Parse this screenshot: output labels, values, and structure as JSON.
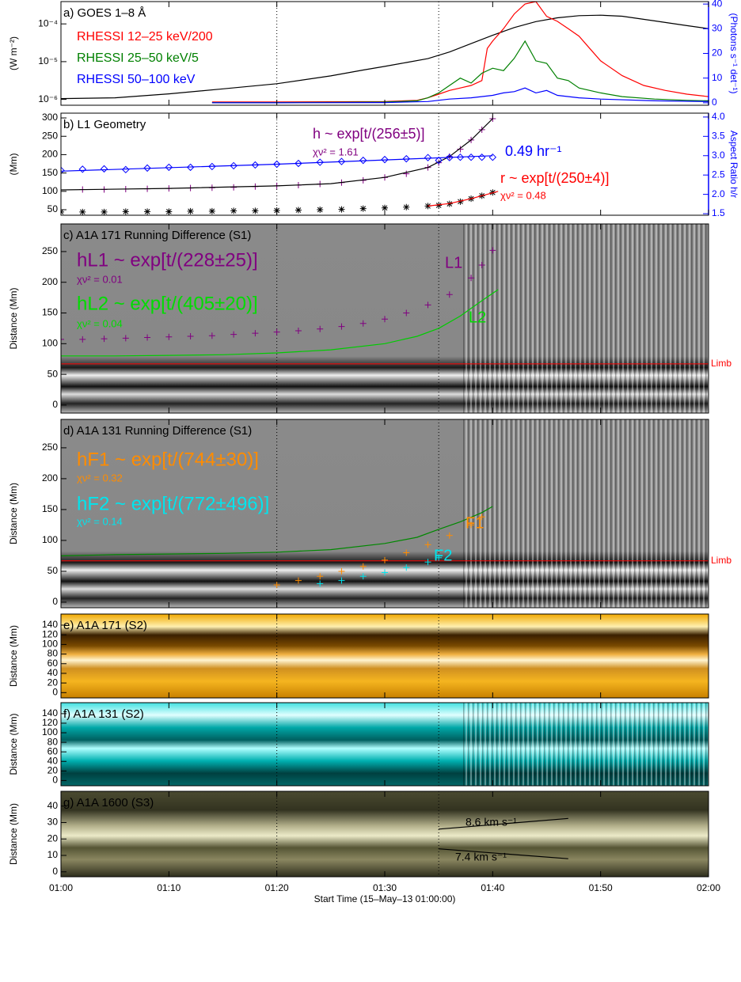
{
  "chart_data": [
    {
      "type": "line",
      "title": "a) GOES 1–8 Å",
      "ylabel": "(W m⁻²)",
      "y2label": "(Photons s⁻¹ det⁻¹)",
      "y2color": "#0000ff",
      "xlim": [
        0,
        60
      ],
      "ylog": true,
      "ylim": [
        7e-07,
        0.00039
      ],
      "yticks": [
        {
          "value": 1e-06,
          "label": "10⁻⁶"
        },
        {
          "value": 1e-05,
          "label": "10⁻⁵"
        },
        {
          "value": 0.0001,
          "label": "10⁻⁴"
        }
      ],
      "y2lim": [
        -1,
        41
      ],
      "y2ticks": [
        0,
        10,
        20,
        30,
        40
      ],
      "vlines": [
        20,
        35
      ],
      "series": [
        {
          "color": "#000000",
          "marker": "line",
          "x": [
            0,
            5,
            10,
            15,
            20,
            25,
            28,
            30,
            32,
            34,
            36,
            38,
            40,
            42,
            44,
            46,
            48,
            50,
            52,
            55,
            58,
            60
          ],
          "values": [
            1.05e-06,
            1.1e-06,
            1.4e-06,
            1.9e-06,
            2.6e-06,
            4.2e-06,
            6e-06,
            7.5e-06,
            9.5e-06,
            1.2e-05,
            1.8e-05,
            3e-05,
            5e-05,
            8e-05,
            0.000115,
            0.000145,
            0.000165,
            0.00017,
            0.00016,
            0.00012,
            9e-05,
            7.5e-05
          ]
        },
        {
          "name": "RHESSI 12–25 keV/200",
          "color": "#ff0000",
          "marker": "line",
          "axis": "y2",
          "x": [
            14,
            20,
            25,
            30,
            33,
            34,
            35,
            36,
            37,
            38,
            39,
            39.5,
            40,
            41,
            42,
            43,
            44,
            45,
            46,
            47,
            48,
            49,
            50,
            52,
            54,
            56,
            58,
            60
          ],
          "values": [
            0.3,
            0.3,
            0.4,
            0.5,
            1,
            2,
            3.5,
            5,
            6,
            7,
            9,
            22,
            25,
            30,
            36,
            40,
            41,
            35,
            33,
            30,
            27,
            22,
            17,
            11,
            7,
            5,
            3.5,
            2.5
          ]
        },
        {
          "name": "RHESSI 25–50 keV/5",
          "color": "#008000",
          "marker": "line",
          "axis": "y2",
          "x": [
            14,
            20,
            25,
            30,
            33,
            34,
            35,
            36,
            37,
            38,
            39,
            40,
            41,
            42,
            43,
            44,
            45,
            46,
            47,
            48,
            50,
            52,
            55,
            58,
            60
          ],
          "values": [
            0.1,
            0.1,
            0.2,
            0.3,
            0.8,
            2,
            4,
            7,
            10,
            8,
            12,
            14,
            13,
            18,
            25,
            17,
            16,
            10,
            9,
            6,
            4,
            2.5,
            1.5,
            1,
            0.8
          ]
        },
        {
          "name": "RHESSI 50–100 keV",
          "color": "#0000ff",
          "marker": "line",
          "axis": "y2",
          "x": [
            14,
            20,
            30,
            34,
            36,
            38,
            40,
            41,
            42,
            43,
            44,
            45,
            46,
            48,
            50,
            55,
            60
          ],
          "values": [
            0,
            0,
            0.1,
            0.5,
            1.5,
            2,
            3,
            4,
            4.5,
            6,
            4,
            5,
            3,
            2,
            1.5,
            0.8,
            0.5
          ]
        }
      ]
    },
    {
      "type": "scatter",
      "title": "b) L1 Geometry",
      "ylabel": "(Mm)",
      "y2label": "Aspect Ratio h/r",
      "y2color": "#0000ff",
      "xlim": [
        0,
        60
      ],
      "ylim": [
        35,
        313
      ],
      "yticks": [
        50,
        100,
        150,
        200,
        250,
        300
      ],
      "y2lim": [
        1.46,
        4.1
      ],
      "y2ticks": [
        1.5,
        {
          "value": 2,
          "label": "2.0"
        },
        2.5,
        {
          "value": 3,
          "label": "3.0"
        },
        3.5,
        {
          "value": 4,
          "label": "4.0"
        }
      ],
      "vlines": [
        20,
        35
      ],
      "series": [
        {
          "color": "#800080",
          "marker": "plus",
          "x": [
            0,
            2,
            4,
            6,
            8,
            10,
            12,
            14,
            16,
            18,
            20,
            22,
            24,
            26,
            28,
            30,
            32,
            34,
            35,
            36,
            37,
            38,
            39,
            40
          ],
          "values": [
            104,
            105,
            105,
            106,
            107,
            108,
            109,
            110,
            111,
            113,
            115,
            117,
            120,
            124,
            130,
            138,
            148,
            165,
            178,
            195,
            215,
            240,
            268,
            298
          ]
        },
        {
          "color": "#000000",
          "marker": "line",
          "x": [
            0,
            10,
            20,
            25,
            30,
            34,
            36,
            38,
            40
          ],
          "values": [
            104,
            108,
            115,
            121,
            138,
            165,
            195,
            240,
            298
          ]
        },
        {
          "color": "#0000ff",
          "marker": "diamond",
          "axis": "y2",
          "x": [
            0,
            2,
            4,
            6,
            8,
            10,
            12,
            14,
            16,
            18,
            20,
            22,
            24,
            26,
            28,
            30,
            32,
            34,
            35,
            36,
            37,
            38,
            39,
            40
          ],
          "values": [
            2.62,
            2.65,
            2.66,
            2.64,
            2.68,
            2.7,
            2.7,
            2.72,
            2.74,
            2.76,
            2.78,
            2.8,
            2.83,
            2.85,
            2.88,
            2.9,
            2.92,
            2.95,
            2.88,
            2.95,
            2.96,
            2.96,
            2.96,
            2.96
          ]
        },
        {
          "color": "#0000ff",
          "marker": "line",
          "axis": "y2",
          "x": [
            0,
            20,
            40
          ],
          "values": [
            2.6,
            2.78,
            3.0
          ]
        },
        {
          "color": "#000000",
          "marker": "asterisk",
          "x": [
            0,
            2,
            4,
            6,
            8,
            10,
            12,
            14,
            16,
            18,
            20,
            22,
            24,
            26,
            28,
            30,
            32,
            34,
            35,
            36,
            37,
            38,
            39,
            40
          ],
          "values": [
            44,
            44,
            44,
            45,
            45,
            45,
            46,
            46,
            47,
            47,
            48,
            49,
            50,
            51,
            53,
            55,
            57,
            60,
            62,
            66,
            72,
            80,
            88,
            97
          ]
        },
        {
          "color": "#ff0000",
          "marker": "line",
          "x": [
            34,
            36,
            38,
            40.5
          ],
          "values": [
            60,
            67,
            80,
            100
          ]
        }
      ],
      "annotations": [
        {
          "text": "h ~ exp[t/(256±5)]",
          "color": "#800080"
        },
        {
          "text": "χν² = 1.61",
          "color": "#800080"
        },
        {
          "text": "0.49 hr⁻¹",
          "color": "#0000ff"
        },
        {
          "text": "r ~ exp[t/(250±4)]",
          "color": "#ff0000"
        },
        {
          "text": "χν² = 0.48",
          "color": "#ff0000"
        }
      ]
    },
    {
      "type": "image",
      "title": "c) A1A 171 Running Difference (S1)",
      "ylabel": "Distance (Mm)",
      "colormap": "gray",
      "xlim": [
        0,
        60
      ],
      "ylim": [
        -13,
        295
      ],
      "yticks": [
        0,
        50,
        100,
        150,
        200,
        250
      ],
      "vlines": [
        20,
        35
      ],
      "hlines": [
        {
          "value": 67,
          "label": "Limb",
          "color": "#ff0000"
        }
      ],
      "series": [
        {
          "color": "#800080",
          "marker": "plus",
          "x": [
            0,
            2,
            4,
            6,
            8,
            10,
            12,
            14,
            16,
            18,
            20,
            22,
            24,
            26,
            28,
            30,
            32,
            34,
            36,
            38,
            39,
            40
          ],
          "values": [
            107,
            107,
            108,
            109,
            110,
            111,
            112,
            113,
            115,
            117,
            119,
            121,
            124,
            128,
            133,
            140,
            150,
            163,
            180,
            207,
            228,
            252
          ]
        },
        {
          "color": "#00cc00",
          "marker": "line",
          "x": [
            0,
            5,
            10,
            15,
            20,
            25,
            30,
            33,
            35,
            37,
            39,
            40.5
          ],
          "values": [
            80,
            80,
            81,
            82,
            85,
            90,
            100,
            112,
            125,
            145,
            170,
            188
          ]
        }
      ],
      "annotations": [
        {
          "text": "hL1 ~ exp[t/(228±25)]",
          "color": "#800080"
        },
        {
          "text": "χν² = 0.01",
          "color": "#800080"
        },
        {
          "text": "hL2 ~ exp[t/(405±20)]",
          "color": "#00dd00"
        },
        {
          "text": "χν² = 0.04",
          "color": "#00dd00"
        },
        {
          "text": "L1",
          "color": "#800080"
        },
        {
          "text": "L2",
          "color": "#00dd00"
        }
      ]
    },
    {
      "type": "image",
      "title": "d) A1A 131 Running Difference (S1)",
      "ylabel": "Distance (Mm)",
      "colormap": "gray",
      "xlim": [
        0,
        60
      ],
      "ylim": [
        -9,
        296
      ],
      "yticks": [
        0,
        50,
        100,
        150,
        200,
        250
      ],
      "vlines": [
        20,
        35
      ],
      "hlines": [
        {
          "value": 67,
          "label": "Limb",
          "color": "#ff0000"
        }
      ],
      "series": [
        {
          "color": "#008800",
          "marker": "line",
          "x": [
            0,
            5,
            10,
            15,
            20,
            25,
            30,
            33,
            35,
            37,
            39,
            40
          ],
          "values": [
            75,
            77,
            78,
            79,
            81,
            85,
            95,
            105,
            118,
            130,
            145,
            155
          ]
        },
        {
          "color": "#ff8c00",
          "marker": "plus",
          "x": [
            20,
            22,
            24,
            26,
            28,
            30,
            32,
            34,
            36,
            38,
            39
          ],
          "values": [
            28,
            35,
            42,
            50,
            58,
            68,
            80,
            93,
            108,
            125,
            138
          ]
        },
        {
          "color": "#00e5ee",
          "marker": "plus",
          "x": [
            24,
            26,
            28,
            30,
            32,
            34,
            35
          ],
          "values": [
            30,
            35,
            42,
            48,
            56,
            65,
            72
          ]
        }
      ],
      "annotations": [
        {
          "text": "hF1 ~ exp[t/(744±30)]",
          "color": "#ff8c00"
        },
        {
          "text": "χν² = 0.32",
          "color": "#ff8c00"
        },
        {
          "text": "hF2 ~ exp[t/(772±496)]",
          "color": "#00e5ee"
        },
        {
          "text": "χν² = 0.14",
          "color": "#00e5ee"
        },
        {
          "text": "F1",
          "color": "#ff8c00"
        },
        {
          "text": "F2",
          "color": "#00e5ee"
        }
      ]
    },
    {
      "type": "image",
      "title": "e) A1A 171 (S2)",
      "ylabel": "Distance (Mm)",
      "colormap": "orange",
      "xlim": [
        0,
        60
      ],
      "ylim": [
        -11,
        163
      ],
      "yticks": [
        0,
        20,
        40,
        60,
        80,
        100,
        120,
        140
      ],
      "vlines": [
        20,
        35
      ]
    },
    {
      "type": "image",
      "title": "f) A1A 131 (S2)",
      "ylabel": "Distance (Mm)",
      "colormap": "cyan",
      "xlim": [
        0,
        60
      ],
      "ylim": [
        -11,
        163
      ],
      "yticks": [
        0,
        20,
        40,
        60,
        80,
        100,
        120,
        140
      ],
      "vlines": [
        20,
        35
      ]
    },
    {
      "type": "image",
      "title": "g) A1A 1600 (S3)",
      "ylabel": "Distance (Mm)",
      "colormap": "olive",
      "xlim": [
        0,
        60
      ],
      "ylim": [
        -3,
        49
      ],
      "yticks": [
        0,
        10,
        20,
        30,
        40
      ],
      "vlines": [
        20,
        35
      ],
      "xlabel": "Start Time (15–May–13 01:00:00)",
      "xticks": [
        {
          "value": 0,
          "label": "01:00"
        },
        {
          "value": 10,
          "label": "01:10"
        },
        {
          "value": 20,
          "label": "01:20"
        },
        {
          "value": 30,
          "label": "01:30"
        },
        {
          "value": 40,
          "label": "01:40"
        },
        {
          "value": 50,
          "label": "01:50"
        },
        {
          "value": 60,
          "label": "02:00"
        }
      ],
      "series": [
        {
          "color": "#000000",
          "marker": "line",
          "x": [
            35,
            47
          ],
          "values": [
            26,
            32.5
          ]
        },
        {
          "color": "#000000",
          "marker": "line",
          "x": [
            35,
            47
          ],
          "values": [
            14,
            8
          ]
        }
      ],
      "annotations": [
        {
          "text": "8.6 km s⁻¹",
          "color": "#000000"
        },
        {
          "text": "7.4 km s⁻¹",
          "color": "#000000"
        }
      ]
    }
  ]
}
